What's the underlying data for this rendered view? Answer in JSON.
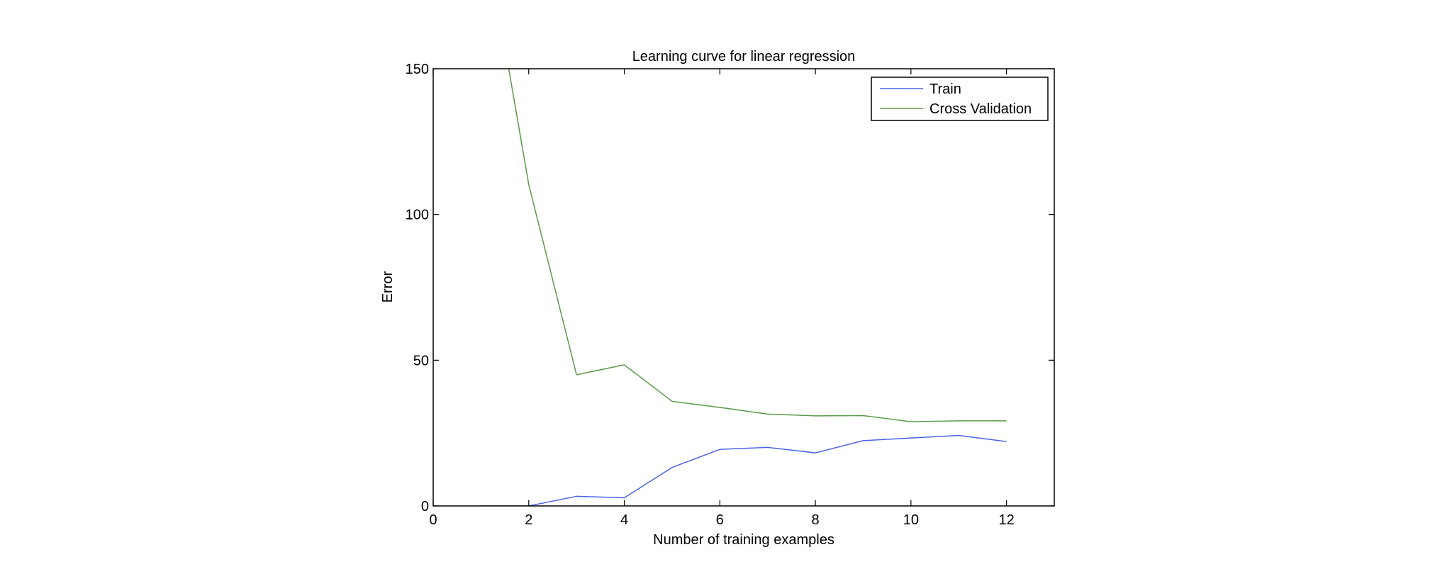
{
  "chart_data": {
    "type": "line",
    "title": "Learning curve for linear regression",
    "xlabel": "Number of training examples",
    "ylabel": "Error",
    "xlim": [
      0,
      13
    ],
    "ylim": [
      0,
      150
    ],
    "xticks": [
      0,
      2,
      4,
      6,
      8,
      10,
      12
    ],
    "yticks": [
      0,
      50,
      100,
      150
    ],
    "grid": false,
    "legend_position": "top-right",
    "series": [
      {
        "name": "Train",
        "color": "#4a63e6",
        "x": [
          1,
          2,
          3,
          4,
          5,
          6,
          7,
          8,
          9,
          10,
          11,
          12
        ],
        "y": [
          0.0,
          0.0,
          3.3,
          2.8,
          13.2,
          19.4,
          20.1,
          18.2,
          22.4,
          23.3,
          24.2,
          22.1
        ]
      },
      {
        "name": "Cross Validation",
        "color": "#5a9a4a",
        "x": [
          1,
          2,
          3,
          4,
          5,
          6,
          7,
          8,
          9,
          10,
          11,
          12
        ],
        "y": [
          205.1,
          110.3,
          45.0,
          48.4,
          35.9,
          33.8,
          31.5,
          30.9,
          31.0,
          28.9,
          29.2,
          29.2
        ]
      }
    ]
  }
}
